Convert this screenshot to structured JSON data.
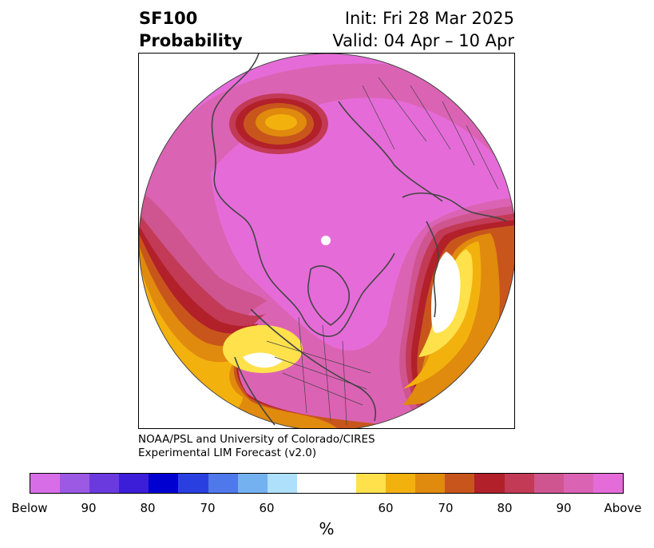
{
  "header": {
    "title_line1": "SF100",
    "title_line2": "Probability",
    "init_text": "Init: Fri 28 Mar 2025",
    "valid_text": "Valid: 04 Apr – 10 Apr"
  },
  "credit": {
    "line1": "NOAA/PSL and University of Colorado/CIRES",
    "line2": "Experimental LIM Forecast (v2.0)"
  },
  "colorbar": {
    "colors": [
      "#d86de8",
      "#9b59e4",
      "#6a3adf",
      "#3c1ed8",
      "#0000d0",
      "#2a3fe0",
      "#4f78ea",
      "#74b1f0",
      "#aee0fb",
      "#ffffff",
      "#ffe14c",
      "#f3b10e",
      "#e08a0e",
      "#c8561c",
      "#b2202a",
      "#c23a55",
      "#cf5590",
      "#db63b4",
      "#e56cd8"
    ],
    "tick_labels": [
      "Below",
      "90",
      "80",
      "70",
      "60",
      "60",
      "70",
      "80",
      "90",
      "Above"
    ],
    "unit_label": "%"
  },
  "map": {
    "projection": "north-polar-stereographic",
    "palette": {
      "pink": "#e56cd8",
      "magenta": "#db63b4",
      "rose": "#cf5590",
      "crimson": "#c23a55",
      "dark_red": "#b2202a",
      "burnt_orange": "#c8561c",
      "orange": "#e08a0e",
      "amber": "#f3b10e",
      "yellow": "#ffe14c",
      "white": "#ffffff",
      "coastline": "#444444"
    }
  }
}
